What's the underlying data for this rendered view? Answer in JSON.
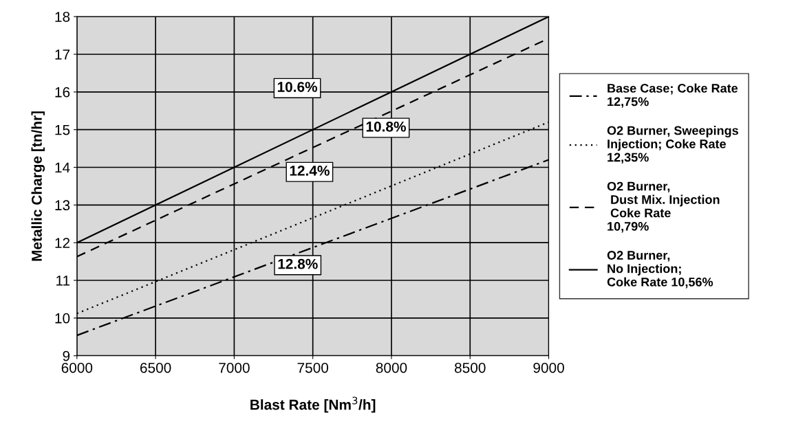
{
  "chart_data": {
    "type": "line",
    "xlabel": "Blast Rate [Nm$^{3}$/h]",
    "ylabel": "Metallic Charge [tn/hr]",
    "x": [
      6000,
      9000
    ],
    "series": [
      {
        "name": "Base Case; Coke Rate\n12,75%",
        "color": "#000000",
        "line_style": "dashdot",
        "values": [
          9.54,
          14.2
        ]
      },
      {
        "name": "O2 Burner, Sweepings\nInjection; Coke Rate\n12,35%",
        "color": "#000000",
        "line_style": "dotted",
        "values": [
          10.12,
          15.2
        ]
      },
      {
        "name": "O2 Burner,\n Dust Mix. Injection\n Coke Rate\n10,79%",
        "color": "#000000",
        "line_style": "dashed",
        "values": [
          11.63,
          17.42
        ]
      },
      {
        "name": "O2 Burner,\nNo Injection;\nCoke Rate 10,56%",
        "color": "#000000",
        "line_style": "solid",
        "values": [
          12.0,
          18.0
        ]
      }
    ],
    "annotations": [
      "10.6%",
      "10.8%",
      "12.4%",
      "12.8%"
    ],
    "xlim": [
      6000,
      9000
    ],
    "xticks": [
      6000,
      6500,
      7000,
      7500,
      8000,
      8500,
      9000
    ],
    "ylim": [
      9,
      18
    ],
    "yticks": [
      9,
      10,
      11,
      12,
      13,
      14,
      15,
      16,
      17,
      18
    ],
    "grid": true,
    "legend": "right",
    "marker": "none"
  }
}
